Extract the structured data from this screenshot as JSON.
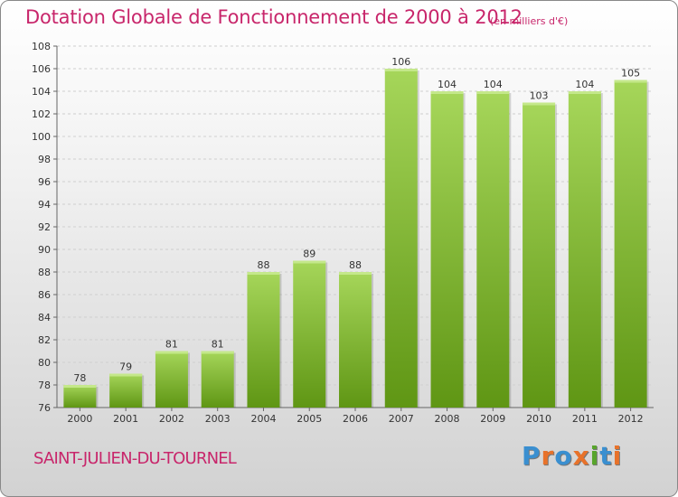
{
  "header": {
    "title": "Dotation Globale de Fonctionnement de 2000 à 2012",
    "unit": "(en milliers d'€)"
  },
  "footer": {
    "commune": "SAINT-JULIEN-DU-TOURNEL",
    "logo": {
      "letters": [
        "P",
        "r",
        "o",
        "x",
        "i",
        "t",
        "i"
      ],
      "colors": [
        "#3a8fd0",
        "#e8722a",
        "#3a8fd0",
        "#e8722a",
        "#58a52c",
        "#3a8fd0",
        "#e8722a"
      ]
    }
  },
  "chart_data": {
    "type": "bar",
    "categories": [
      "2000",
      "2001",
      "2002",
      "2003",
      "2004",
      "2005",
      "2006",
      "2007",
      "2008",
      "2009",
      "2010",
      "2011",
      "2012"
    ],
    "values": [
      78,
      79,
      81,
      81,
      88,
      89,
      88,
      106,
      104,
      104,
      103,
      104,
      105
    ],
    "data_labels": [
      "78",
      "79",
      "81",
      "81",
      "88",
      "89",
      "88",
      "106",
      "104",
      "104",
      "103",
      "104",
      "105"
    ],
    "yticks": [
      "76",
      "78",
      "80",
      "82",
      "84",
      "86",
      "88",
      "90",
      "92",
      "94",
      "96",
      "98",
      "100",
      "102",
      "104",
      "106",
      "108"
    ],
    "ylim": [
      76,
      108
    ],
    "ytick_step": 2,
    "grid": true,
    "bar_colors": {
      "top": "#a6d65a",
      "bottom": "#5f9614"
    }
  }
}
